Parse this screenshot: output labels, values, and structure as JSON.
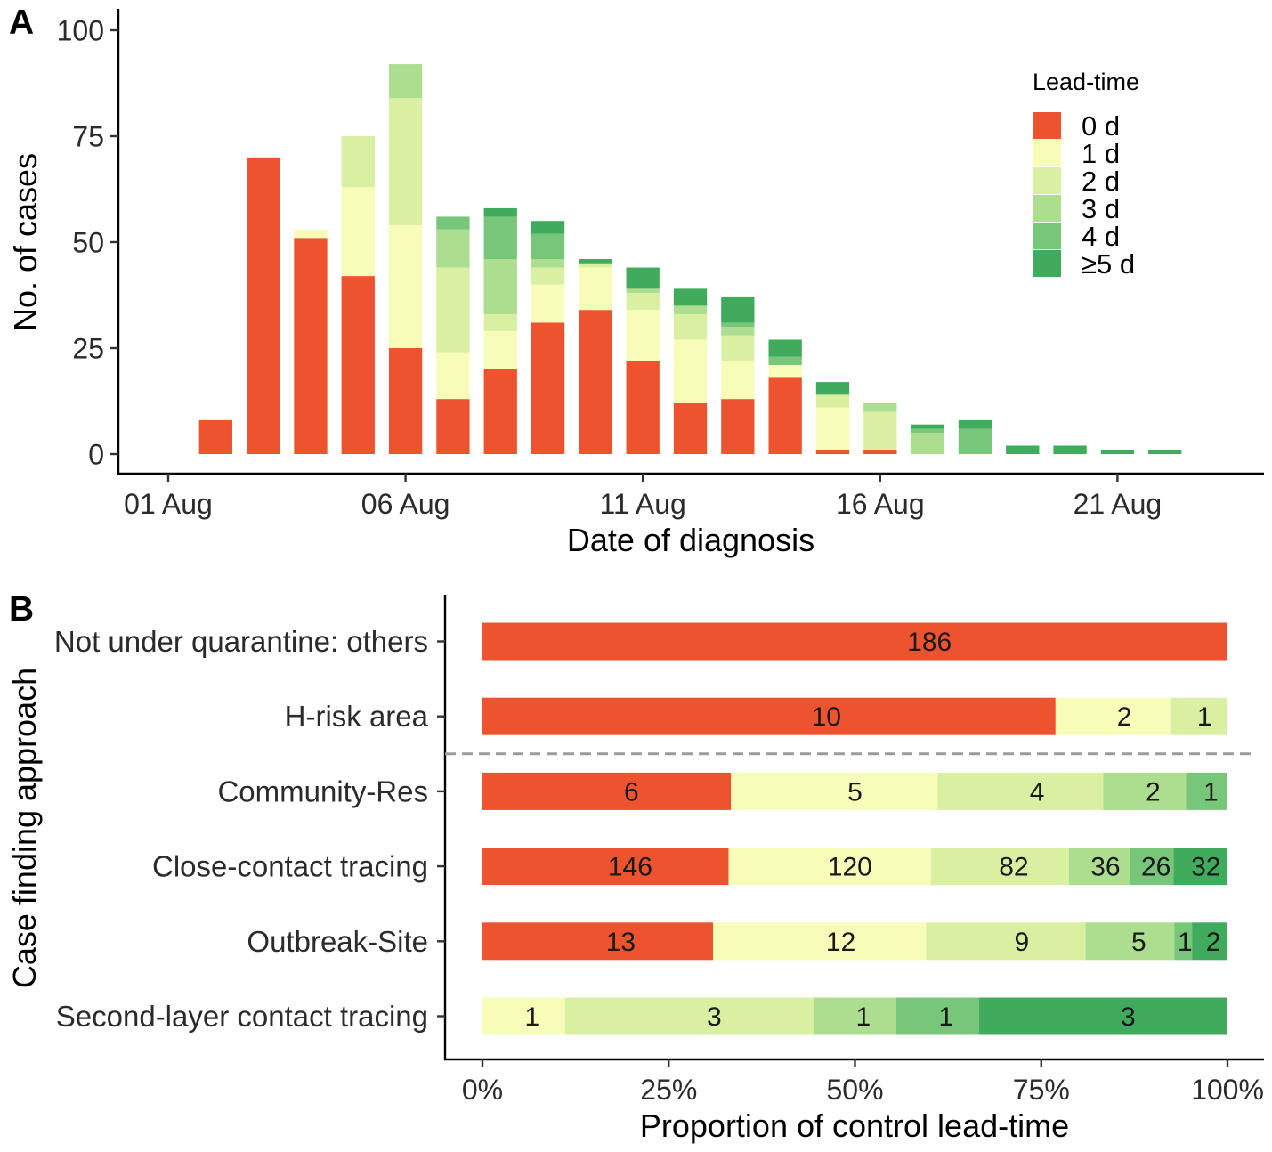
{
  "chart_data": [
    {
      "panel": "A",
      "type": "bar",
      "stacked": true,
      "xlabel": "Date of diagnosis",
      "ylabel": "No. of cases",
      "ylim": [
        0,
        100
      ],
      "yticks": [
        0,
        25,
        50,
        75,
        100
      ],
      "xticks": [
        {
          "day": 1,
          "label": "01 Aug"
        },
        {
          "day": 6,
          "label": "06 Aug"
        },
        {
          "day": 11,
          "label": "11 Aug"
        },
        {
          "day": 16,
          "label": "16 Aug"
        },
        {
          "day": 21,
          "label": "21 Aug"
        }
      ],
      "days": [
        2,
        3,
        4,
        5,
        6,
        7,
        8,
        9,
        10,
        11,
        12,
        13,
        14,
        15,
        16,
        17,
        18,
        19,
        20,
        21,
        22
      ],
      "legend": {
        "title": "Lead-time",
        "position": "top-right"
      },
      "series": [
        {
          "name": "0 d",
          "color": "#EE532F",
          "values": [
            8,
            70,
            51,
            42,
            25,
            13,
            20,
            31,
            34,
            22,
            12,
            13,
            18,
            1,
            1,
            0,
            0,
            0,
            0,
            0,
            0
          ]
        },
        {
          "name": "1 d",
          "color": "#F7FCB9",
          "values": [
            0,
            0,
            2,
            21,
            29,
            11,
            9,
            9,
            10,
            12,
            15,
            9,
            3,
            10,
            0,
            0,
            0,
            0,
            0,
            0,
            0
          ]
        },
        {
          "name": "2 d",
          "color": "#D9F0A3",
          "values": [
            0,
            0,
            0,
            12,
            30,
            20,
            4,
            4,
            1,
            4,
            6,
            6,
            0,
            3,
            9,
            0,
            0,
            0,
            0,
            0,
            0
          ]
        },
        {
          "name": "3 d",
          "color": "#ADDD8E",
          "values": [
            0,
            0,
            0,
            0,
            8,
            9,
            13,
            2,
            0,
            1,
            2,
            2,
            0,
            0,
            2,
            5,
            0,
            0,
            0,
            0,
            0
          ]
        },
        {
          "name": "4 d",
          "color": "#78C679",
          "values": [
            0,
            0,
            0,
            0,
            0,
            3,
            10,
            6,
            0,
            0,
            0,
            1,
            2,
            0,
            0,
            1,
            6,
            0,
            0,
            0,
            0
          ]
        },
        {
          "name": "≥5 d",
          "color": "#41AB5D",
          "values": [
            0,
            0,
            0,
            0,
            0,
            0,
            2,
            3,
            1,
            5,
            4,
            6,
            4,
            3,
            0,
            1,
            2,
            2,
            2,
            1,
            1
          ]
        }
      ]
    },
    {
      "panel": "B",
      "type": "bar",
      "horizontal": true,
      "stacked": true,
      "normalized": true,
      "xlabel": "Proportion of control lead-time",
      "ylabel": "Case finding approach",
      "xlim": [
        0,
        1
      ],
      "xticks": [
        {
          "value": 0,
          "label": "0%"
        },
        {
          "value": 0.25,
          "label": "25%"
        },
        {
          "value": 0.5,
          "label": "50%"
        },
        {
          "value": 0.75,
          "label": "75%"
        },
        {
          "value": 1,
          "label": "100%"
        }
      ],
      "categories": [
        "Not under quarantine: others",
        "H-risk area",
        "Community-Res",
        "Close-contact tracing",
        "Outbreak-Site",
        "Second-layer contact tracing"
      ],
      "separator_after_index": 1,
      "series": [
        {
          "values": [
            186,
            10,
            6,
            146,
            13,
            0
          ]
        },
        {
          "values": [
            0,
            2,
            5,
            120,
            12,
            1
          ]
        },
        {
          "values": [
            0,
            1,
            4,
            82,
            9,
            3
          ]
        },
        {
          "values": [
            0,
            0,
            2,
            36,
            5,
            1
          ]
        },
        {
          "values": [
            0,
            0,
            1,
            26,
            1,
            1
          ]
        },
        {
          "values": [
            0,
            0,
            0,
            32,
            2,
            3
          ]
        }
      ]
    }
  ]
}
